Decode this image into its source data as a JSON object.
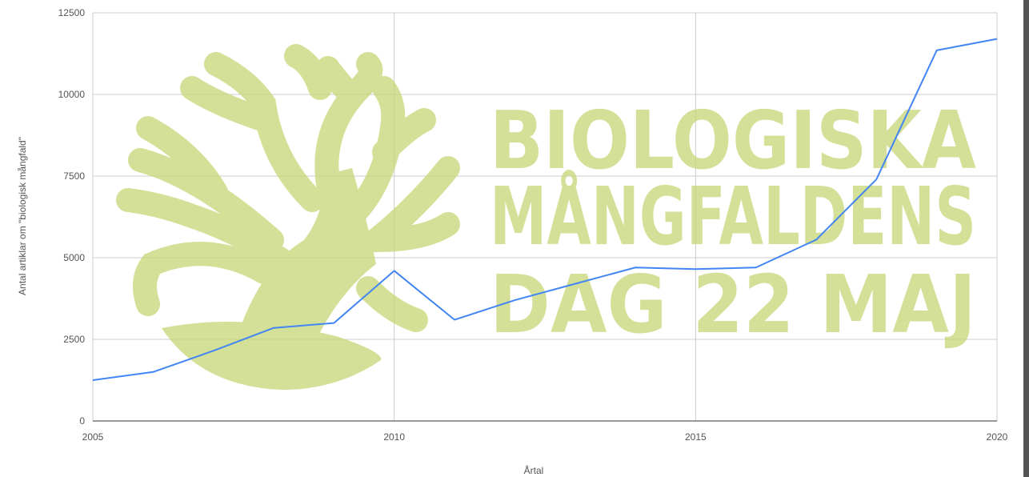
{
  "chart_data": {
    "type": "line",
    "x_label": "Årtal",
    "y_label": "Antal artiklar om \"biologisk mångfald\"",
    "watermark": [
      "BIOLOGISKA",
      "MÅNGFALDENS",
      "DAG 22 MAJ"
    ],
    "x": [
      2005,
      2006,
      2007,
      2008,
      2009,
      2010,
      2011,
      2012,
      2013,
      2014,
      2015,
      2016,
      2017,
      2018,
      2019,
      2020
    ],
    "values": [
      1250,
      1500,
      2150,
      2850,
      3000,
      4600,
      3100,
      3700,
      4200,
      4700,
      4650,
      4700,
      5550,
      7400,
      11350,
      11700
    ],
    "color": "#4285f4",
    "xlim": [
      2005,
      2020
    ],
    "xticks": [
      2005,
      2010,
      2015,
      2020
    ],
    "ylim": [
      0,
      12500
    ],
    "yticks": [
      0,
      2500,
      5000,
      7500,
      10000,
      12500
    ],
    "grid": true
  }
}
